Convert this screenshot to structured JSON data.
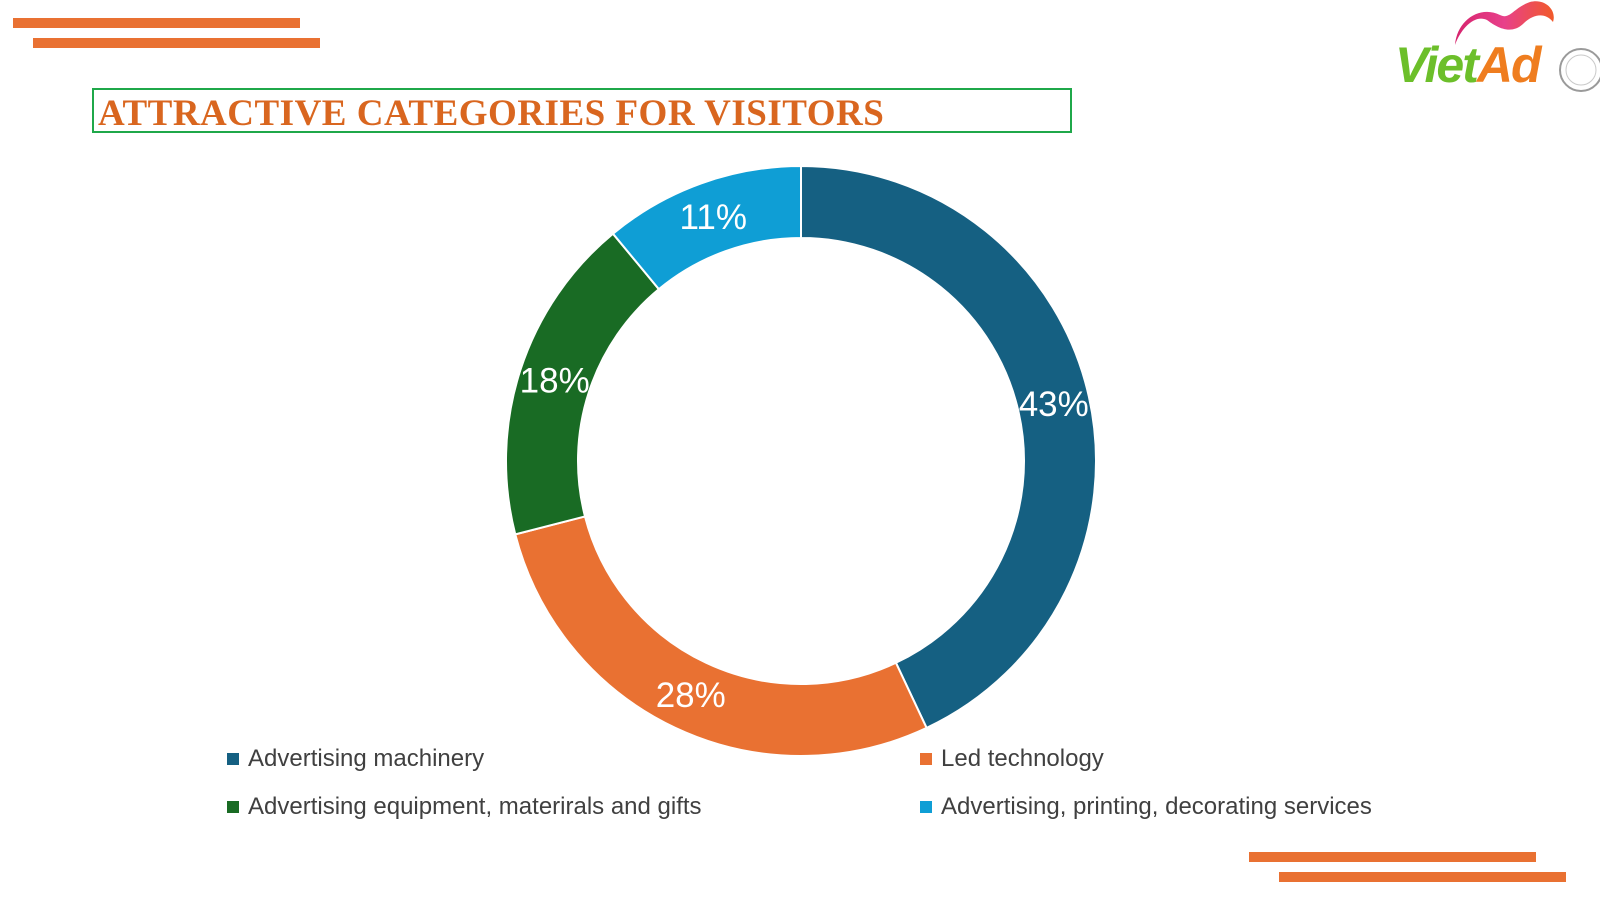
{
  "title": "ATTRACTIVE CATEGORIES FOR VISITORS",
  "logo": {
    "part1": "Viet",
    "part2": "Ad",
    "color_green": "#6cbf2a",
    "color_orange": "#ef7d1f"
  },
  "colors": {
    "accent_bar": "#e97132",
    "title_text": "#d9661f",
    "title_border": "#1fa84a"
  },
  "chart_data": {
    "type": "pie",
    "style": "donut",
    "title": "",
    "legend_position": "bottom",
    "categories": [
      "Advertising machinery",
      "Led technology",
      "Advertising equipment, materirals and gifts",
      "Advertising, printing, decorating services"
    ],
    "values": [
      43,
      28,
      18,
      11
    ],
    "labels": [
      "43%",
      "28%",
      "18%",
      "11%"
    ],
    "colors": [
      "#156082",
      "#e97132",
      "#196b24",
      "#0f9ed5"
    ]
  }
}
